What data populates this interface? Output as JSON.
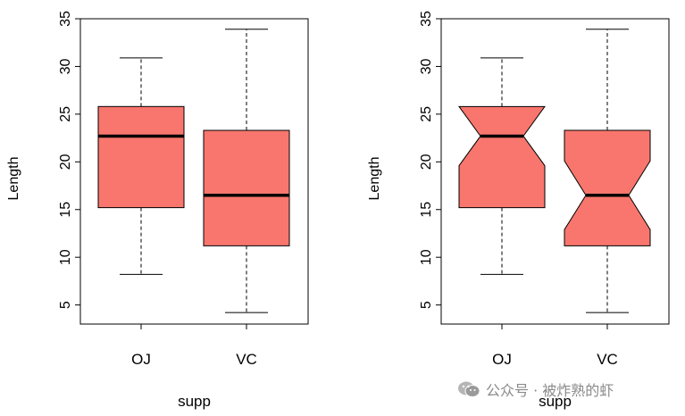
{
  "chart_data": [
    {
      "type": "box",
      "notched": false,
      "xlabel": "supp",
      "ylabel": "Length",
      "ylim": [
        3,
        35
      ],
      "yticks": [
        5,
        10,
        15,
        20,
        25,
        30,
        35
      ],
      "categories": [
        "OJ",
        "VC"
      ],
      "boxes": [
        {
          "category": "OJ",
          "min": 8.2,
          "q1": 15.2,
          "median": 22.7,
          "q3": 25.8,
          "max": 30.9
        },
        {
          "category": "VC",
          "min": 4.2,
          "q1": 11.2,
          "median": 16.5,
          "q3": 23.3,
          "max": 33.9
        }
      ],
      "fill_color": "#f8766d"
    },
    {
      "type": "box",
      "notched": true,
      "xlabel": "supp",
      "ylabel": "Length",
      "ylim": [
        3,
        35
      ],
      "yticks": [
        5,
        10,
        15,
        20,
        25,
        30,
        35
      ],
      "categories": [
        "OJ",
        "VC"
      ],
      "boxes": [
        {
          "category": "OJ",
          "min": 8.2,
          "q1": 15.2,
          "median": 22.7,
          "q3": 25.8,
          "max": 30.9,
          "notch_low": 19.6,
          "notch_high": 25.8
        },
        {
          "category": "VC",
          "min": 4.2,
          "q1": 11.2,
          "median": 16.5,
          "q3": 23.3,
          "max": 33.9,
          "notch_low": 12.9,
          "notch_high": 20.1
        }
      ],
      "fill_color": "#f8766d"
    }
  ],
  "watermark": {
    "text": "公众号 · 被炸熟的虾",
    "icon": "wechat-icon"
  }
}
